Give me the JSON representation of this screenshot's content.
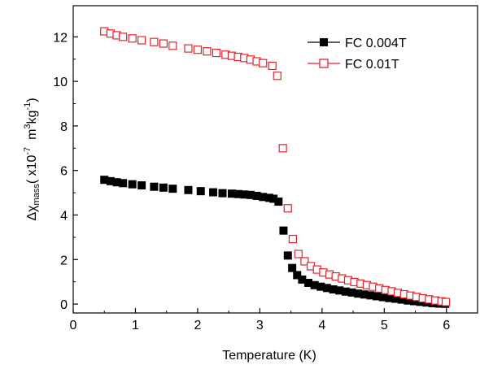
{
  "chart_data": {
    "type": "scatter",
    "xlabel": "Temperature (K)",
    "ylabel": {
      "prefix": "Δχ",
      "subscript": "mass",
      "unit_open": "( x10",
      "unit_exp1": "-7",
      "unit_mid": "  m",
      "unit_exp2": "3",
      "unit_kg": "kg",
      "unit_exp3": "-1",
      "unit_close": ")"
    },
    "xlim": [
      0,
      6.5
    ],
    "ylim": [
      -0.4,
      13.4
    ],
    "x_ticks": [
      0,
      1,
      2,
      3,
      4,
      5,
      6
    ],
    "y_ticks": [
      0,
      2,
      4,
      6,
      8,
      10,
      12
    ],
    "grid": false,
    "legend_position": "top-right",
    "colors": {
      "fc_004": "#000000",
      "fc_01": "#e8202a"
    },
    "series": [
      {
        "name": "FC 0.004T",
        "marker": "filled-square",
        "color": "#000000",
        "points": [
          [
            0.5,
            5.58
          ],
          [
            0.6,
            5.52
          ],
          [
            0.7,
            5.47
          ],
          [
            0.8,
            5.43
          ],
          [
            0.95,
            5.38
          ],
          [
            1.1,
            5.33
          ],
          [
            1.3,
            5.27
          ],
          [
            1.45,
            5.23
          ],
          [
            1.6,
            5.18
          ],
          [
            1.85,
            5.12
          ],
          [
            2.05,
            5.07
          ],
          [
            2.25,
            5.02
          ],
          [
            2.4,
            4.98
          ],
          [
            2.55,
            4.96
          ],
          [
            2.65,
            4.94
          ],
          [
            2.75,
            4.92
          ],
          [
            2.85,
            4.9
          ],
          [
            2.95,
            4.86
          ],
          [
            3.05,
            4.81
          ],
          [
            3.15,
            4.77
          ],
          [
            3.22,
            4.73
          ],
          [
            3.3,
            4.6
          ],
          [
            3.38,
            3.3
          ],
          [
            3.45,
            2.18
          ],
          [
            3.52,
            1.62
          ],
          [
            3.6,
            1.3
          ],
          [
            3.68,
            1.1
          ],
          [
            3.78,
            0.95
          ],
          [
            3.88,
            0.85
          ],
          [
            3.98,
            0.78
          ],
          [
            4.08,
            0.72
          ],
          [
            4.18,
            0.66
          ],
          [
            4.28,
            0.61
          ],
          [
            4.38,
            0.56
          ],
          [
            4.48,
            0.52
          ],
          [
            4.58,
            0.47
          ],
          [
            4.68,
            0.43
          ],
          [
            4.78,
            0.39
          ],
          [
            4.88,
            0.35
          ],
          [
            4.98,
            0.31
          ],
          [
            5.08,
            0.27
          ],
          [
            5.18,
            0.24
          ],
          [
            5.28,
            0.2
          ],
          [
            5.38,
            0.16
          ],
          [
            5.48,
            0.13
          ],
          [
            5.58,
            0.1
          ],
          [
            5.68,
            0.07
          ],
          [
            5.78,
            0.04
          ],
          [
            5.88,
            0.02
          ],
          [
            5.98,
            0.01
          ]
        ]
      },
      {
        "name": "FC 0.01T",
        "marker": "open-square",
        "color": "#e8202a",
        "points": [
          [
            0.5,
            12.25
          ],
          [
            0.6,
            12.15
          ],
          [
            0.7,
            12.07
          ],
          [
            0.8,
            12.0
          ],
          [
            0.95,
            11.93
          ],
          [
            1.1,
            11.85
          ],
          [
            1.3,
            11.77
          ],
          [
            1.45,
            11.7
          ],
          [
            1.6,
            11.6
          ],
          [
            1.85,
            11.48
          ],
          [
            2.0,
            11.42
          ],
          [
            2.15,
            11.35
          ],
          [
            2.3,
            11.28
          ],
          [
            2.45,
            11.2
          ],
          [
            2.55,
            11.15
          ],
          [
            2.65,
            11.1
          ],
          [
            2.75,
            11.05
          ],
          [
            2.85,
            10.98
          ],
          [
            2.95,
            10.9
          ],
          [
            3.05,
            10.82
          ],
          [
            3.2,
            10.7
          ],
          [
            3.28,
            10.25
          ],
          [
            3.37,
            7.0
          ],
          [
            3.45,
            4.3
          ],
          [
            3.53,
            2.92
          ],
          [
            3.62,
            2.25
          ],
          [
            3.72,
            1.92
          ],
          [
            3.82,
            1.7
          ],
          [
            3.92,
            1.55
          ],
          [
            4.02,
            1.42
          ],
          [
            4.12,
            1.33
          ],
          [
            4.22,
            1.24
          ],
          [
            4.32,
            1.15
          ],
          [
            4.42,
            1.07
          ],
          [
            4.52,
            0.99
          ],
          [
            4.62,
            0.92
          ],
          [
            4.72,
            0.85
          ],
          [
            4.82,
            0.78
          ],
          [
            4.92,
            0.7
          ],
          [
            5.02,
            0.63
          ],
          [
            5.12,
            0.57
          ],
          [
            5.22,
            0.5
          ],
          [
            5.32,
            0.44
          ],
          [
            5.42,
            0.38
          ],
          [
            5.52,
            0.32
          ],
          [
            5.62,
            0.26
          ],
          [
            5.72,
            0.21
          ],
          [
            5.82,
            0.16
          ],
          [
            5.92,
            0.12
          ],
          [
            5.99,
            0.09
          ]
        ]
      }
    ]
  }
}
